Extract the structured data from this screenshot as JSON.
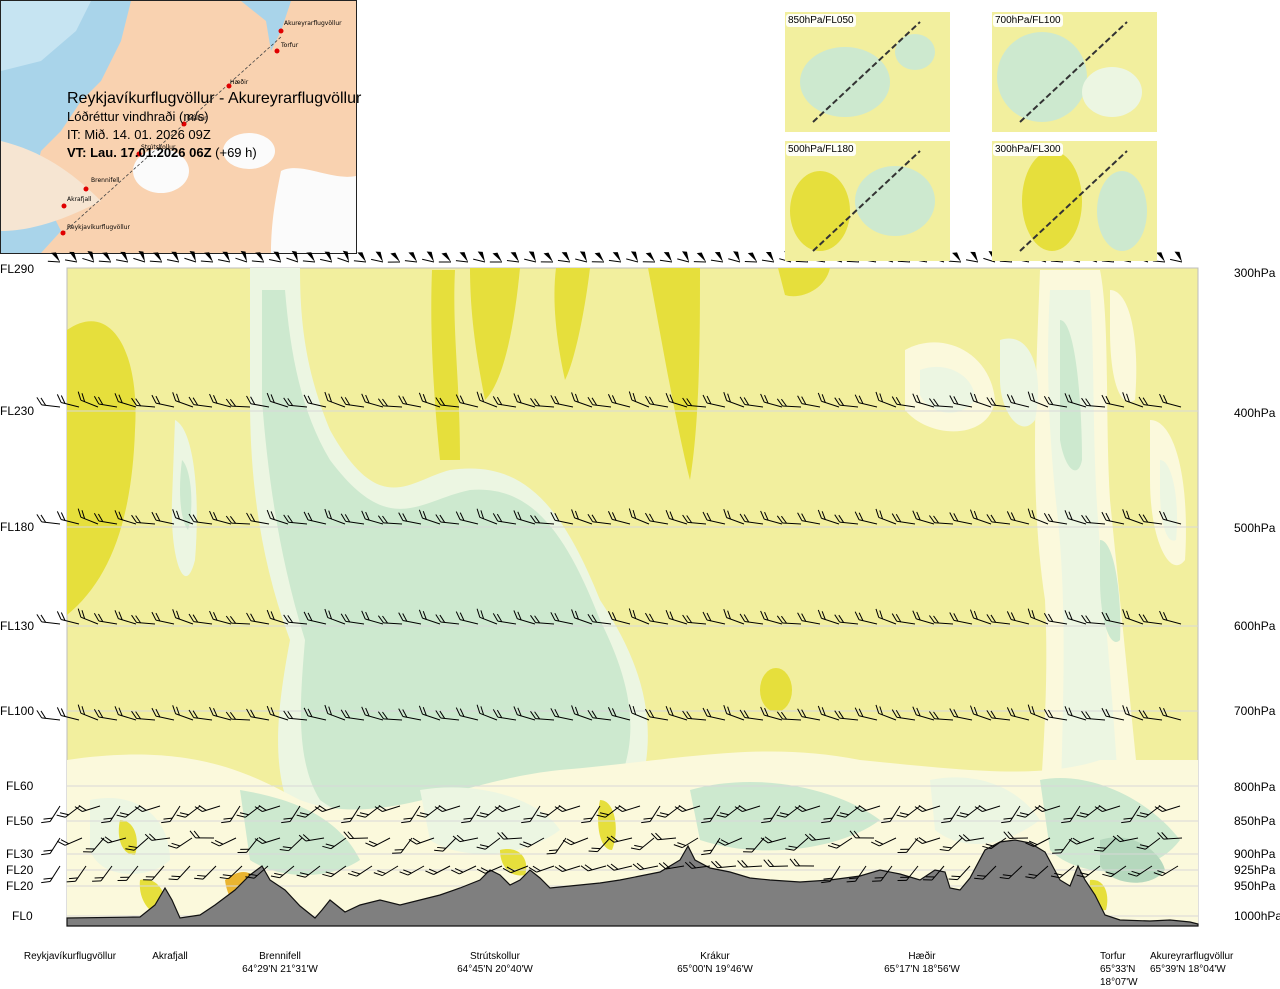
{
  "header": {
    "route": "Reykjavíkurflugvöllur - Akureyrarflugvöllur",
    "parameter": "Lóðréttur vindhraði (m/s)",
    "issue_time": "IT: Mið. 14. 01. 2026 09Z",
    "valid_prefix": "VT: Lau. 17.01.2026 06Z",
    "valid_suffix": " (+69 h)"
  },
  "route_map": {
    "waypoints": [
      "Akureyrarflugvöllur",
      "Torfur",
      "Hæðir",
      "Krákur",
      "Strútskollur",
      "Brennifell",
      "Akrafjall",
      "Reykjavíkurflugvöllur"
    ]
  },
  "thumbnails": [
    {
      "label": "850hPa/FL050"
    },
    {
      "label": "700hPa/FL100"
    },
    {
      "label": "500hPa/FL180"
    },
    {
      "label": "300hPa/FL300"
    }
  ],
  "colors": {
    "yellow": "#f2ef9e",
    "yellow_dark": "#e6df3c",
    "orange": "#eab531",
    "cream": "#fbf9dc",
    "green_light": "#ecf6e2",
    "green": "#cde9cf",
    "green_dark": "#b5d8bd",
    "terrain": "#7f7f7f"
  },
  "chart_data": {
    "type": "heatmap",
    "title": "Lóðréttur vindhraði (m/s)",
    "levels": [
      {
        "fl": "FL290",
        "hpa": "300hPa"
      },
      {
        "fl": "FL230",
        "hpa": "400hPa"
      },
      {
        "fl": "FL180",
        "hpa": "500hPa"
      },
      {
        "fl": "FL130",
        "hpa": "600hPa"
      },
      {
        "fl": "FL100",
        "hpa": "700hPa"
      },
      {
        "fl": "FL60",
        "hpa": "800hPa"
      },
      {
        "fl": "FL50",
        "hpa": "850hPa"
      },
      {
        "fl": "FL30",
        "hpa": "900hPa"
      },
      {
        "fl": "FL20",
        "hpa": "925hPa"
      },
      {
        "fl": "FL20",
        "hpa": "950hPa"
      },
      {
        "fl": "FL0",
        "hpa": "1000hPa"
      }
    ],
    "stations": [
      {
        "name": "Reykjavíkurflugvöllur",
        "coord": ""
      },
      {
        "name": "Akrafjall",
        "coord": ""
      },
      {
        "name": "Brennifell",
        "coord": "64°29'N 21°31'W"
      },
      {
        "name": "Strútskollur",
        "coord": "64°45'N 20°40'W"
      },
      {
        "name": "Krákur",
        "coord": "65°00'N 19°46'W"
      },
      {
        "name": "Hæðir",
        "coord": "65°17'N 18°56'W"
      },
      {
        "name": "Torfur",
        "coord": "65°33'N 18°07'W"
      },
      {
        "name": "Akureyrarflugvöllur",
        "coord": "65°39'N 18°04'W"
      }
    ]
  }
}
